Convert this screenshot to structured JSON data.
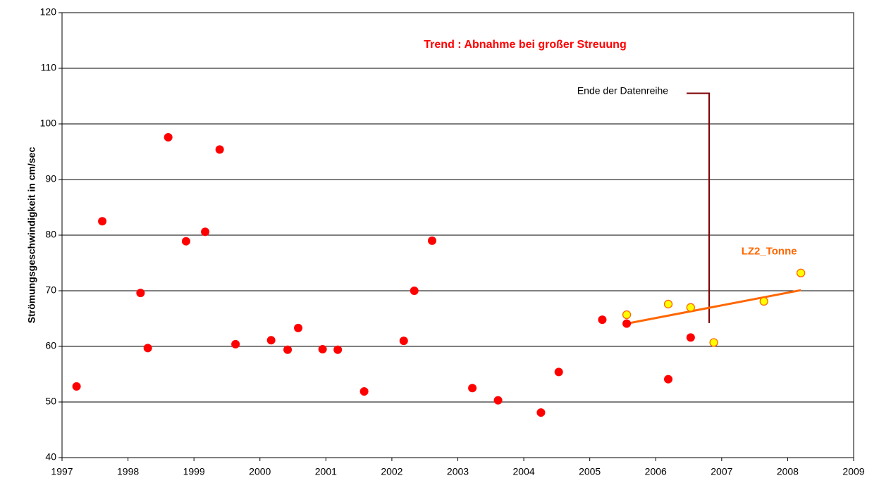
{
  "chart_data": {
    "type": "scatter",
    "title": "Trend : Abnahme bei großer Streuung",
    "y_label": "Strömungsgeschwindigkeit in cm/sec",
    "xlim": [
      1997,
      2009
    ],
    "xticks": [
      1997,
      1998,
      1999,
      2000,
      2001,
      2002,
      2003,
      2004,
      2005,
      2006,
      2007,
      2008,
      2009
    ],
    "ylim": [
      40,
      120
    ],
    "yticks": [
      40,
      50,
      60,
      70,
      80,
      90,
      100,
      110,
      120
    ],
    "grid": true,
    "series": [
      {
        "color": "#ff0000",
        "x": [
          1997.22,
          1997.61,
          1998.19,
          1998.3,
          1998.61,
          1998.88,
          1999.17,
          1999.39,
          1999.63,
          2000.17,
          2000.42,
          2000.58,
          2000.95,
          2001.18,
          2001.58,
          2002.18,
          2002.34,
          2002.61,
          2003.22,
          2003.61,
          2004.26,
          2004.53,
          2005.19,
          2005.56,
          2006.19,
          2006.53
        ],
        "values": [
          52.8,
          82.5,
          69.6,
          59.7,
          97.6,
          78.9,
          80.6,
          95.4,
          60.4,
          61.1,
          59.4,
          63.3,
          59.5,
          59.4,
          51.9,
          61.0,
          70.0,
          79.0,
          52.5,
          50.3,
          48.1,
          55.4,
          64.8,
          64.1,
          54.1,
          61.6
        ]
      },
      {
        "name": "LZ2_Tonne",
        "color": "#ffff00",
        "edge_color": "#ff6600",
        "x": [
          2005.56,
          2006.19,
          2006.53,
          2006.88,
          2007.64,
          2008.2
        ],
        "values": [
          65.7,
          67.6,
          67.0,
          60.7,
          68.1,
          73.2
        ]
      }
    ],
    "trend_line": {
      "color": "#ff6600",
      "x": [
        2005.56,
        2008.2
      ],
      "values": [
        64.1,
        70.1
      ]
    },
    "annotation": {
      "text": "Ende der Datenreihe",
      "x": 2006.81,
      "y": 105.5,
      "y_end": 64.2,
      "color": "#800000"
    }
  }
}
